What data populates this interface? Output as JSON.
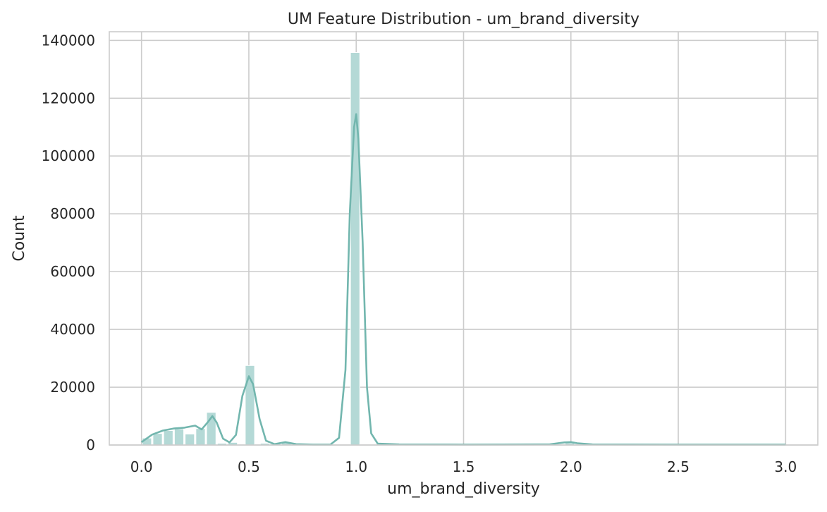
{
  "chart_data": {
    "type": "bar",
    "title": "UM Feature Distribution - um_brand_diversity",
    "xlabel": "um_brand_diversity",
    "ylabel": "Count",
    "xlim": [
      -0.15,
      3.15
    ],
    "ylim": [
      0,
      143000
    ],
    "xticks": [
      0.0,
      0.5,
      1.0,
      1.5,
      2.0,
      2.5,
      3.0
    ],
    "xtick_labels": [
      "0.0",
      "0.5",
      "1.0",
      "1.5",
      "2.0",
      "2.5",
      "3.0"
    ],
    "yticks": [
      0,
      20000,
      40000,
      60000,
      80000,
      100000,
      120000,
      140000
    ],
    "ytick_labels": [
      "0",
      "20000",
      "40000",
      "60000",
      "80000",
      "100000",
      "120000",
      "140000"
    ],
    "grid": true,
    "legend": false,
    "colors": {
      "bar": "#b4d9d6",
      "kde": "#72b6ae",
      "grid": "#cccccc",
      "frame": "#cccccc"
    },
    "histogram": {
      "bin_width": 0.05,
      "bins": [
        {
          "x0": 0.0,
          "count": 2400
        },
        {
          "x0": 0.05,
          "count": 4000
        },
        {
          "x0": 0.1,
          "count": 5000
        },
        {
          "x0": 0.15,
          "count": 5600
        },
        {
          "x0": 0.2,
          "count": 3800
        },
        {
          "x0": 0.25,
          "count": 5700
        },
        {
          "x0": 0.3,
          "count": 11300
        },
        {
          "x0": 0.35,
          "count": 600
        },
        {
          "x0": 0.4,
          "count": 900
        },
        {
          "x0": 0.45,
          "count": 0
        },
        {
          "x0": 0.48,
          "count": 27500
        },
        {
          "x0": 0.55,
          "count": 600
        },
        {
          "x0": 0.6,
          "count": 500
        },
        {
          "x0": 0.65,
          "count": 1000
        },
        {
          "x0": 0.7,
          "count": 400
        },
        {
          "x0": 0.97,
          "count": 135800
        },
        {
          "x0": 1.97,
          "count": 700
        }
      ]
    },
    "kde": {
      "x": [
        0.0,
        0.05,
        0.1,
        0.15,
        0.2,
        0.25,
        0.28,
        0.31,
        0.33,
        0.35,
        0.38,
        0.41,
        0.44,
        0.47,
        0.5,
        0.52,
        0.55,
        0.58,
        0.62,
        0.67,
        0.72,
        0.8,
        0.88,
        0.92,
        0.95,
        0.97,
        0.99,
        1.0,
        1.01,
        1.03,
        1.05,
        1.07,
        1.1,
        1.2,
        1.5,
        1.9,
        1.97,
        2.0,
        2.03,
        2.1,
        2.5,
        3.0
      ],
      "y": [
        1000,
        3600,
        5000,
        5700,
        6000,
        6700,
        5400,
        8000,
        10000,
        7800,
        2200,
        900,
        3500,
        17000,
        23800,
        21000,
        9000,
        1500,
        300,
        1000,
        300,
        150,
        150,
        2500,
        26000,
        80000,
        110000,
        114500,
        106000,
        70000,
        20000,
        4000,
        500,
        200,
        150,
        200,
        900,
        1000,
        600,
        200,
        150,
        150
      ]
    }
  }
}
